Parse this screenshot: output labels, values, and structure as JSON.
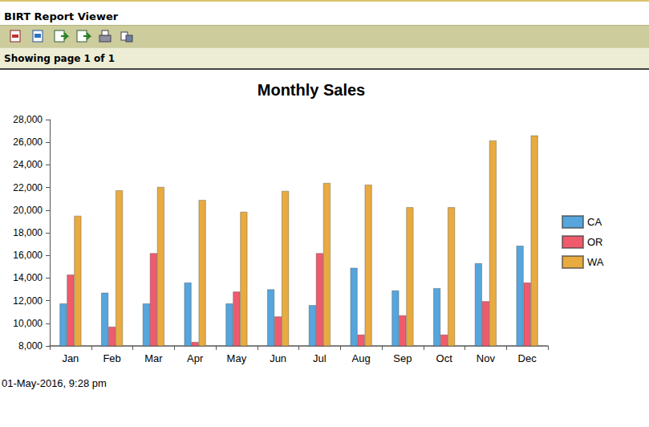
{
  "viewer": {
    "title": "BIRT Report Viewer",
    "page_status": "Showing page 1 of 1"
  },
  "footer": "01-May-2016, 9:28 pm",
  "chart_data": {
    "type": "bar",
    "title": "Monthly Sales",
    "categories": [
      "Jan",
      "Feb",
      "Mar",
      "Apr",
      "May",
      "Jun",
      "Jul",
      "Aug",
      "Sep",
      "Oct",
      "Nov",
      "Dec"
    ],
    "series": [
      {
        "name": "CA",
        "color": "#56a5dc",
        "values": [
          11750,
          12700,
          11750,
          13600,
          11750,
          13000,
          11600,
          14900,
          12900,
          13100,
          15300,
          16850
        ]
      },
      {
        "name": "OR",
        "color": "#ef5b6d",
        "values": [
          14300,
          9700,
          16200,
          8350,
          12800,
          10600,
          16200,
          9000,
          10700,
          9000,
          11950,
          13600
        ]
      },
      {
        "name": "WA",
        "color": "#e8ab40",
        "values": [
          19500,
          21750,
          22050,
          20900,
          19850,
          21700,
          22400,
          22250,
          20250,
          20250,
          26150,
          26600
        ]
      }
    ],
    "ylim": [
      8000,
      28000
    ],
    "yticks": [
      8000,
      10000,
      12000,
      14000,
      16000,
      18000,
      20000,
      22000,
      24000,
      26000,
      28000
    ],
    "grid": false,
    "legend": "right"
  }
}
